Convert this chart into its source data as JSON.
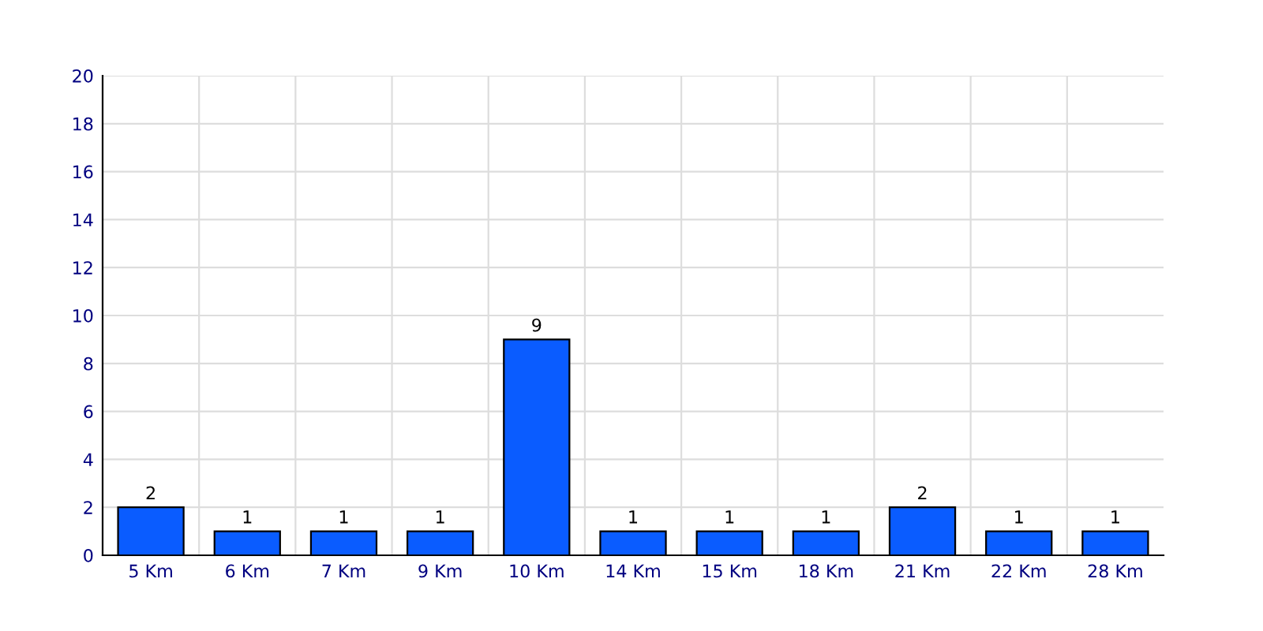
{
  "chart_data": {
    "type": "bar",
    "categories": [
      "5 Km",
      "6 Km",
      "7 Km",
      "9 Km",
      "10 Km",
      "14 Km",
      "15 Km",
      "18 Km",
      "21 Km",
      "22 Km",
      "28 Km"
    ],
    "values": [
      2,
      1,
      1,
      1,
      9,
      1,
      1,
      1,
      2,
      1,
      1
    ],
    "color": "#0a5cff",
    "ylim": [
      0,
      20
    ],
    "yticks": [
      0,
      2,
      4,
      6,
      8,
      10,
      12,
      14,
      16,
      18,
      20
    ],
    "grid": true,
    "data_labels": true
  }
}
